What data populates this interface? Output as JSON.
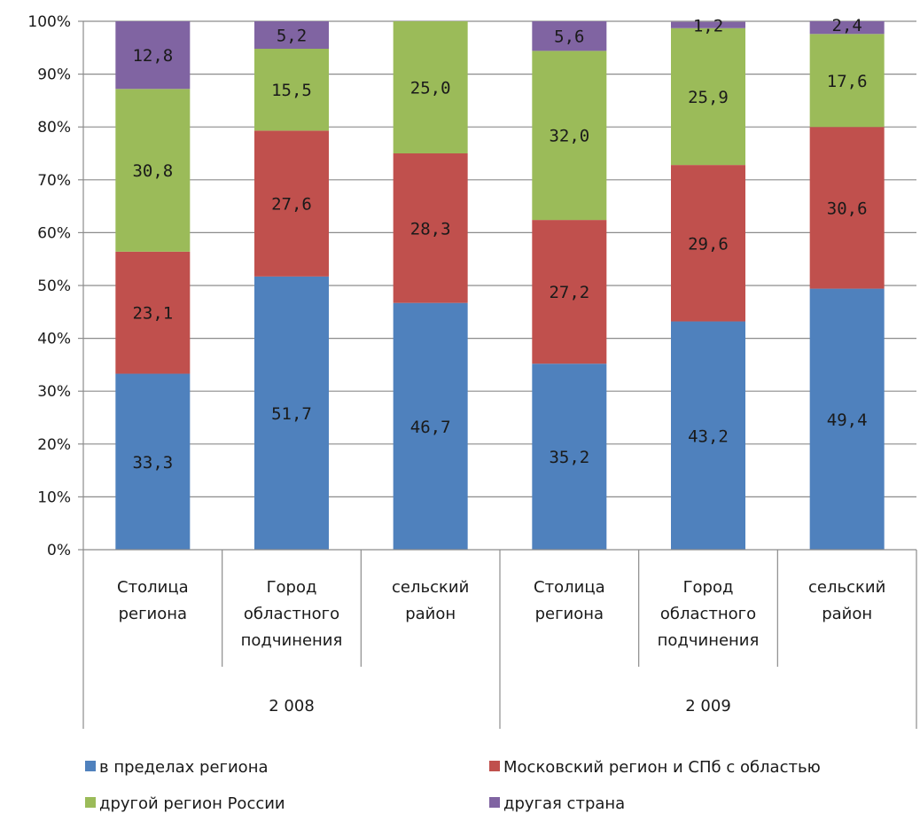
{
  "chart_data": {
    "type": "bar",
    "stacked": true,
    "percent_stacked": true,
    "categories": [
      {
        "label": [
          "Столица",
          "региона"
        ],
        "group": "2 008"
      },
      {
        "label": [
          "Город",
          "областного",
          "подчинения"
        ],
        "group": "2 008"
      },
      {
        "label": [
          "сельский",
          "район"
        ],
        "group": "2 008"
      },
      {
        "label": [
          "Столица",
          "региона"
        ],
        "group": "2 009"
      },
      {
        "label": [
          "Город",
          "областного",
          "подчинения"
        ],
        "group": "2 009"
      },
      {
        "label": [
          "сельский",
          "район"
        ],
        "group": "2 009"
      }
    ],
    "groups": [
      "2 008",
      "2 009"
    ],
    "series": [
      {
        "name": "в пределах региона",
        "color": "#4F81BD",
        "values": [
          33.3,
          51.7,
          46.7,
          35.2,
          43.2,
          49.4
        ],
        "labels": [
          "33,3",
          "51,7",
          "46,7",
          "35,2",
          "43,2",
          "49,4"
        ]
      },
      {
        "name": "Московский регион и СПб с областью",
        "color": "#C0504D",
        "values": [
          23.1,
          27.6,
          28.3,
          27.2,
          29.6,
          30.6
        ],
        "labels": [
          "23,1",
          "27,6",
          "28,3",
          "27,2",
          "29,6",
          "30,6"
        ]
      },
      {
        "name": "другой регион России",
        "color": "#9BBB59",
        "values": [
          30.8,
          15.5,
          25.0,
          32.0,
          25.9,
          17.6
        ],
        "labels": [
          "30,8",
          "15,5",
          "25,0",
          "32,0",
          "25,9",
          "17,6"
        ]
      },
      {
        "name": "другая страна",
        "color": "#8064A2",
        "values": [
          12.8,
          5.2,
          0,
          5.6,
          1.2,
          2.4
        ],
        "labels": [
          "12,8",
          "5,2",
          "",
          "5,6",
          "1,2",
          "2,4"
        ]
      }
    ],
    "y_ticks": [
      "0%",
      "10%",
      "20%",
      "30%",
      "40%",
      "50%",
      "60%",
      "70%",
      "80%",
      "90%",
      "100%"
    ],
    "ylim": [
      0,
      100
    ],
    "grid": true,
    "legend_position": "bottom"
  }
}
